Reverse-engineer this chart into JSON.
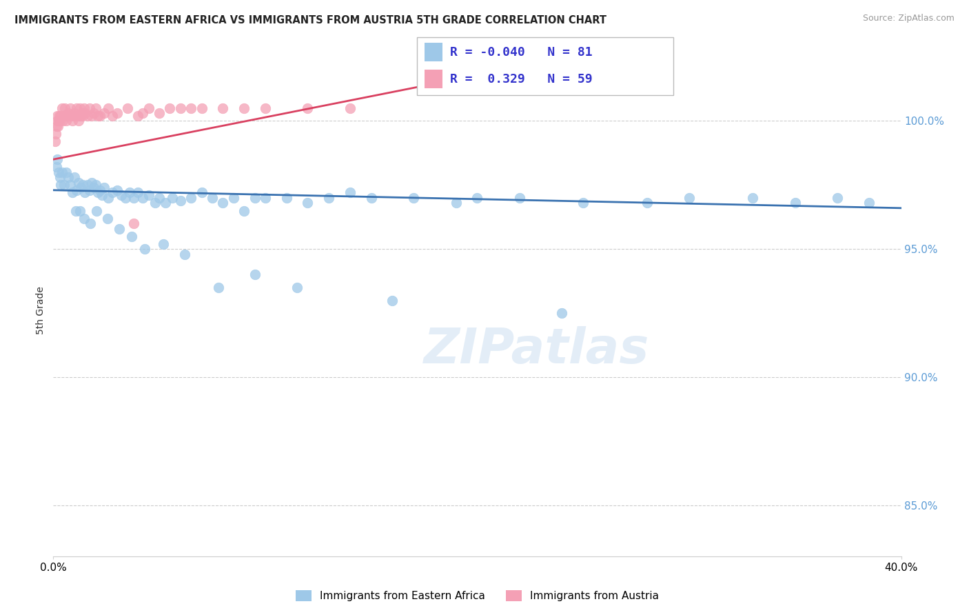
{
  "title": "IMMIGRANTS FROM EASTERN AFRICA VS IMMIGRANTS FROM AUSTRIA 5TH GRADE CORRELATION CHART",
  "source": "Source: ZipAtlas.com",
  "ylabel": "5th Grade",
  "y_ticks": [
    85.0,
    90.0,
    95.0,
    100.0
  ],
  "y_tick_labels": [
    "85.0%",
    "90.0%",
    "95.0%",
    "100.0%"
  ],
  "x_min": 0.0,
  "x_max": 40.0,
  "y_min": 83.0,
  "y_max": 102.2,
  "blue_label": "Immigrants from Eastern Africa",
  "pink_label": "Immigrants from Austria",
  "blue_color": "#9EC8E8",
  "pink_color": "#F4A0B5",
  "blue_line_color": "#3A72B0",
  "pink_line_color": "#D94060",
  "R_blue": -0.04,
  "N_blue": 81,
  "R_pink": 0.329,
  "N_pink": 59,
  "legend_text_color": "#3333CC",
  "watermark": "ZIPatlas",
  "blue_line_x0": 0.0,
  "blue_line_y0": 97.3,
  "blue_line_x1": 40.0,
  "blue_line_y1": 96.6,
  "pink_line_x0": 0.0,
  "pink_line_y0": 98.5,
  "pink_line_x1": 14.0,
  "pink_line_y1": 100.8,
  "blue_scatter_x": [
    0.15,
    0.2,
    0.25,
    0.3,
    0.35,
    0.4,
    0.5,
    0.6,
    0.7,
    0.8,
    0.9,
    1.0,
    1.1,
    1.2,
    1.3,
    1.4,
    1.5,
    1.6,
    1.7,
    1.8,
    1.9,
    2.0,
    2.1,
    2.2,
    2.3,
    2.4,
    2.6,
    2.8,
    3.0,
    3.2,
    3.4,
    3.6,
    3.8,
    4.0,
    4.2,
    4.5,
    4.8,
    5.0,
    5.3,
    5.6,
    6.0,
    6.5,
    7.0,
    7.5,
    8.0,
    8.5,
    9.0,
    9.5,
    10.0,
    11.0,
    12.0,
    13.0,
    14.0,
    15.0,
    17.0,
    19.0,
    20.0,
    22.0,
    25.0,
    28.0,
    30.0,
    33.0,
    37.0,
    38.5,
    1.05,
    1.25,
    1.45,
    1.75,
    2.05,
    2.55,
    3.1,
    3.7,
    4.3,
    5.2,
    6.2,
    7.8,
    9.5,
    11.5,
    16.0,
    24.0,
    35.0
  ],
  "blue_scatter_y": [
    98.2,
    98.5,
    98.0,
    97.8,
    97.5,
    98.0,
    97.5,
    98.0,
    97.8,
    97.5,
    97.2,
    97.8,
    97.3,
    97.6,
    97.4,
    97.5,
    97.2,
    97.5,
    97.3,
    97.6,
    97.4,
    97.5,
    97.2,
    97.3,
    97.1,
    97.4,
    97.0,
    97.2,
    97.3,
    97.1,
    97.0,
    97.2,
    97.0,
    97.2,
    97.0,
    97.1,
    96.8,
    97.0,
    96.8,
    97.0,
    96.9,
    97.0,
    97.2,
    97.0,
    96.8,
    97.0,
    96.5,
    97.0,
    97.0,
    97.0,
    96.8,
    97.0,
    97.2,
    97.0,
    97.0,
    96.8,
    97.0,
    97.0,
    96.8,
    96.8,
    97.0,
    97.0,
    97.0,
    96.8,
    96.5,
    96.5,
    96.2,
    96.0,
    96.5,
    96.2,
    95.8,
    95.5,
    95.0,
    95.2,
    94.8,
    93.5,
    94.0,
    93.5,
    93.0,
    92.5,
    96.8
  ],
  "pink_scatter_x": [
    0.1,
    0.12,
    0.15,
    0.18,
    0.2,
    0.22,
    0.25,
    0.28,
    0.3,
    0.35,
    0.4,
    0.45,
    0.5,
    0.55,
    0.6,
    0.65,
    0.7,
    0.75,
    0.8,
    0.85,
    0.9,
    0.95,
    1.0,
    1.05,
    1.1,
    1.15,
    1.2,
    1.25,
    1.3,
    1.35,
    1.4,
    1.45,
    1.5,
    1.6,
    1.7,
    1.8,
    1.9,
    2.0,
    2.2,
    2.4,
    2.6,
    2.8,
    3.0,
    3.5,
    4.0,
    4.5,
    5.0,
    5.5,
    6.0,
    6.5,
    7.0,
    8.0,
    9.0,
    10.0,
    12.0,
    14.0,
    3.8,
    4.2,
    2.1
  ],
  "pink_scatter_y": [
    99.2,
    99.5,
    99.8,
    100.0,
    100.2,
    99.8,
    100.0,
    100.2,
    100.0,
    100.2,
    100.5,
    100.0,
    100.2,
    100.5,
    100.0,
    100.2,
    100.3,
    100.2,
    100.5,
    100.2,
    100.0,
    100.2,
    100.3,
    100.2,
    100.5,
    100.2,
    100.0,
    100.5,
    100.2,
    100.3,
    100.2,
    100.5,
    100.3,
    100.2,
    100.5,
    100.2,
    100.3,
    100.5,
    100.2,
    100.3,
    100.5,
    100.2,
    100.3,
    100.5,
    100.2,
    100.5,
    100.3,
    100.5,
    100.5,
    100.5,
    100.5,
    100.5,
    100.5,
    100.5,
    100.5,
    100.5,
    96.0,
    100.3,
    100.2
  ]
}
